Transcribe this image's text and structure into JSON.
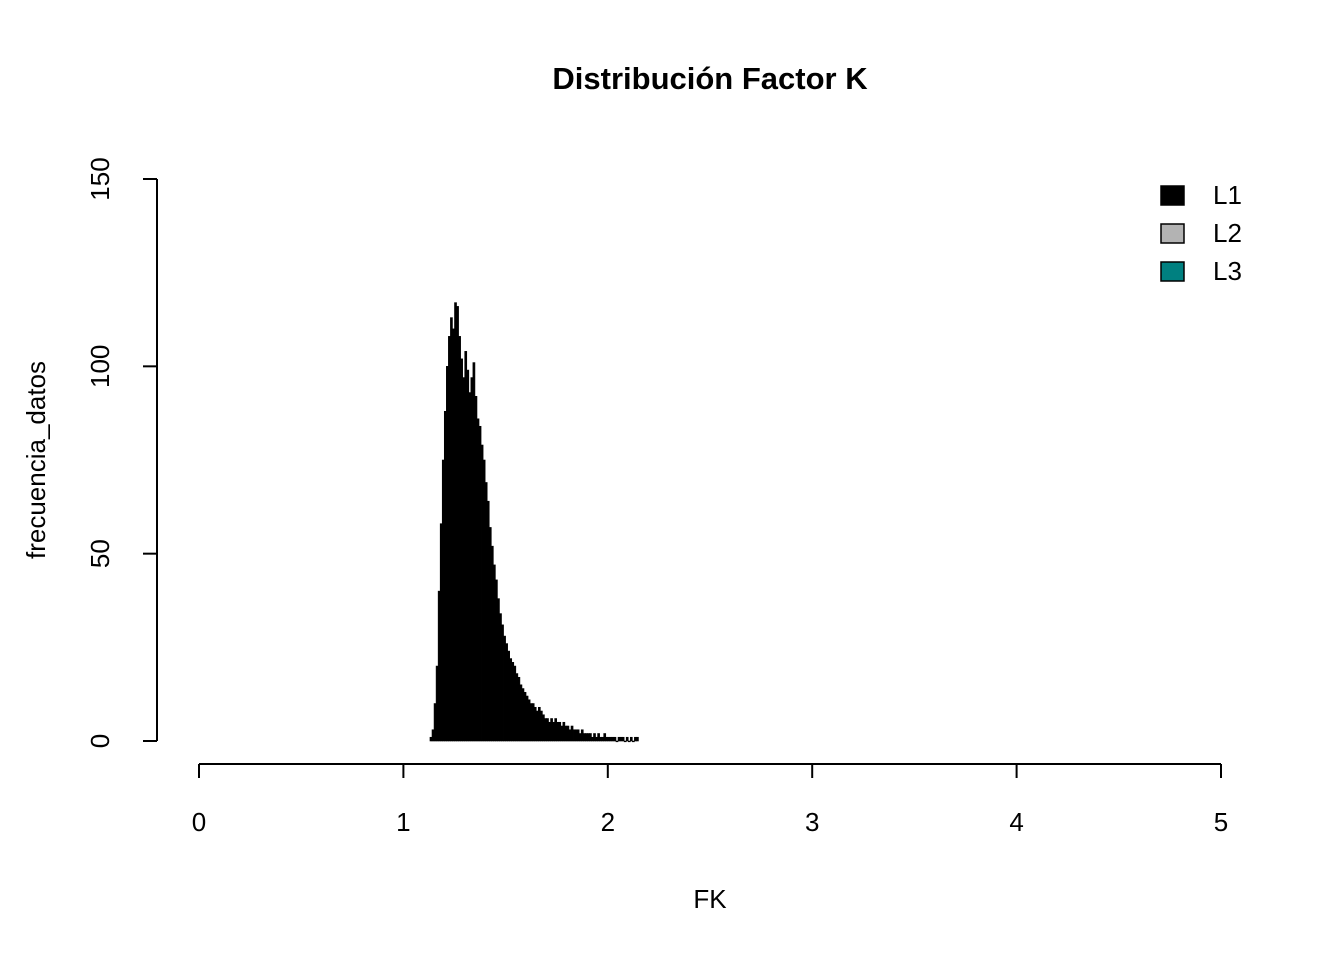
{
  "chart_data": {
    "type": "histogram",
    "title": "Distribución Factor K",
    "x_label": "FK",
    "y_label": "frecuencia_datos",
    "bins": [
      1.13,
      1.14,
      1.15,
      1.16,
      1.17,
      1.18,
      1.19,
      1.2,
      1.21,
      1.22,
      1.23,
      1.24,
      1.25,
      1.26,
      1.27,
      1.28,
      1.29,
      1.3,
      1.31,
      1.32,
      1.33,
      1.34,
      1.35,
      1.36,
      1.37,
      1.38,
      1.39,
      1.4,
      1.41,
      1.42,
      1.43,
      1.44,
      1.45,
      1.46,
      1.47,
      1.48,
      1.49,
      1.5,
      1.51,
      1.52,
      1.53,
      1.54,
      1.55,
      1.56,
      1.57,
      1.58,
      1.59,
      1.6,
      1.61,
      1.62,
      1.63,
      1.64,
      1.65,
      1.66,
      1.67,
      1.68,
      1.69,
      1.7,
      1.71,
      1.72,
      1.73,
      1.74,
      1.75,
      1.76,
      1.77,
      1.78,
      1.79,
      1.8,
      1.81,
      1.82,
      1.83,
      1.84,
      1.85,
      1.86,
      1.87,
      1.88,
      1.89,
      1.9,
      1.91,
      1.92,
      1.93,
      1.94,
      1.95,
      1.96,
      1.97,
      1.98,
      1.99,
      2.0,
      2.01,
      2.02,
      2.03,
      2.04,
      2.05,
      2.06,
      2.07,
      2.08,
      2.09,
      2.1,
      2.11,
      2.12,
      2.13,
      2.14,
      2.15
    ],
    "values": [
      1,
      3,
      10,
      20,
      40,
      58,
      75,
      88,
      100,
      108,
      113,
      110,
      117,
      116,
      108,
      102,
      97,
      104,
      99,
      93,
      97,
      101,
      92,
      86,
      84,
      79,
      75,
      69,
      64,
      57,
      52,
      47,
      43,
      38,
      34,
      31,
      28,
      26,
      24,
      22,
      21,
      20,
      18,
      17,
      15,
      14,
      13,
      12,
      11,
      10,
      10,
      9,
      8,
      9,
      8,
      7,
      6,
      6,
      5,
      6,
      5,
      6,
      5,
      5,
      4,
      5,
      4,
      4,
      3,
      4,
      3,
      3,
      3,
      2,
      3,
      2,
      2,
      2,
      2,
      1,
      2,
      1,
      2,
      1,
      1,
      2,
      1,
      1,
      1,
      1,
      1,
      0,
      1,
      1,
      1,
      0,
      1,
      0,
      1,
      0,
      1,
      1
    ],
    "color": "#000000",
    "xlim": [
      0,
      5
    ],
    "xticks": [
      0,
      1,
      2,
      3,
      4,
      5
    ],
    "ylim": [
      0,
      150
    ],
    "yticks": [
      0,
      50,
      100,
      150
    ],
    "legend": {
      "position": "topright",
      "entries": [
        {
          "name": "L1",
          "color": "#000000"
        },
        {
          "name": "L2",
          "color": "#b3b3b3"
        },
        {
          "name": "L3",
          "color": "#008080"
        }
      ]
    }
  }
}
